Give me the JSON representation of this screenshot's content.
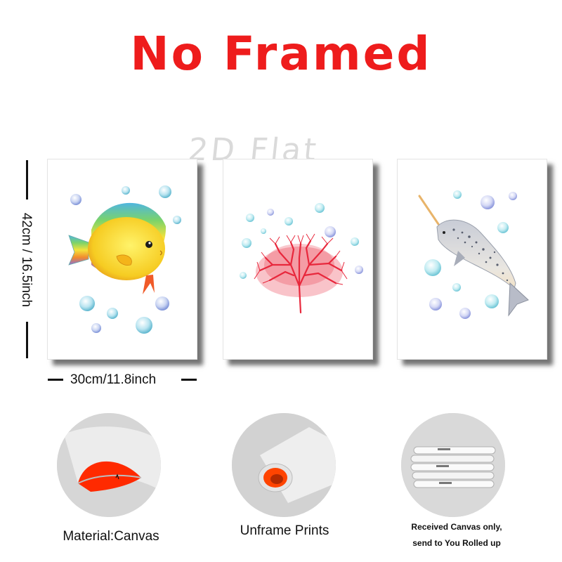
{
  "header": {
    "title": "No Framed"
  },
  "watermark": {
    "text": "2D Flat"
  },
  "dimensions": {
    "height_label": "42cm / 16.5inch",
    "width_label": "30cm/11.8inch"
  },
  "prints": [
    {
      "subject": "yellow-fish"
    },
    {
      "subject": "red-coral"
    },
    {
      "subject": "narwhal"
    }
  ],
  "features": [
    {
      "caption": "Material:Canvas"
    },
    {
      "caption": "Unframe  Prints"
    },
    {
      "caption_line1": "Received Canvas only,",
      "caption_line2": "send to You Rolled up"
    }
  ],
  "colors": {
    "title": "#ee1c1c",
    "coral": "#e8283c",
    "canvas_back": "#ff2a00"
  }
}
